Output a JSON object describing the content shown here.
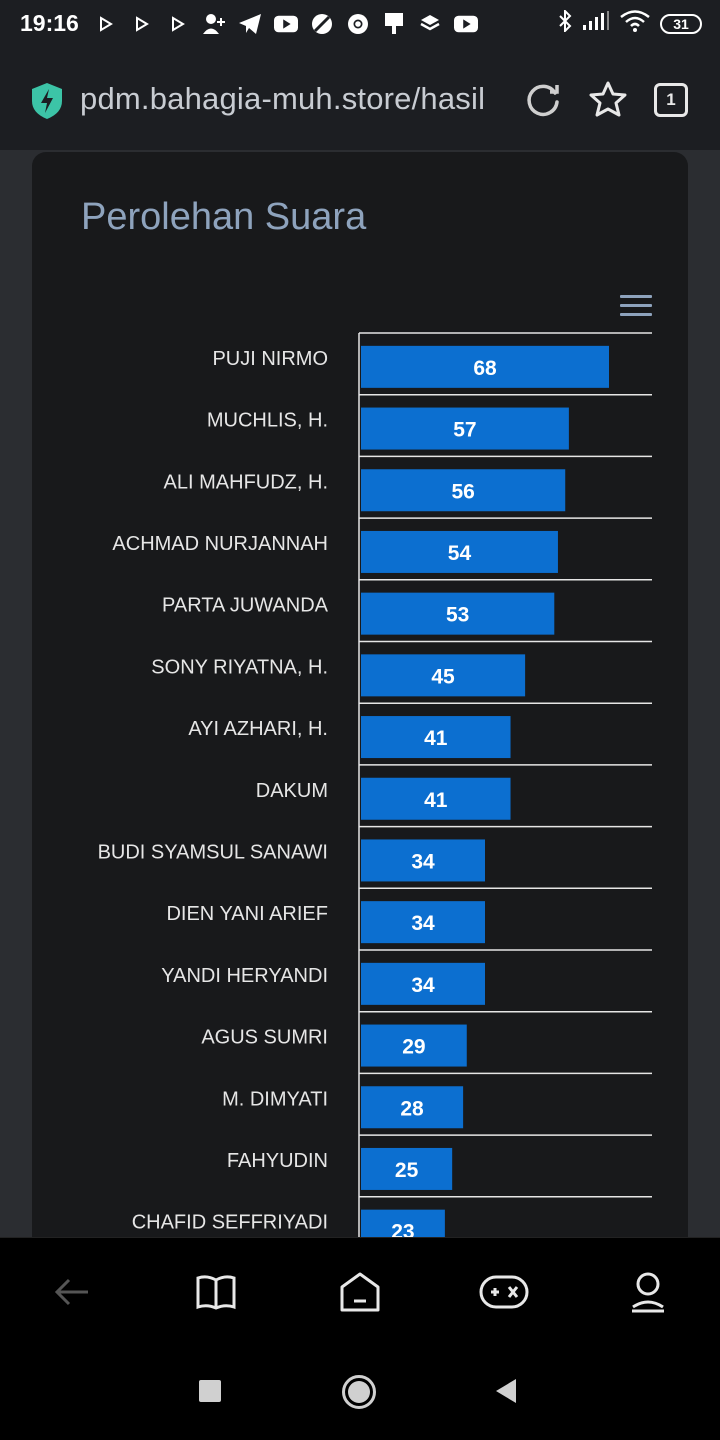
{
  "status_bar": {
    "time": "19:16",
    "battery": "31",
    "notification_icons": [
      "play-store-icon",
      "play-store-icon",
      "play-store-icon",
      "add-user-icon",
      "telegram-icon",
      "youtube-icon",
      "blocked-icon",
      "chrome-icon",
      "flag-icon",
      "stack-icon",
      "youtube-icon"
    ],
    "system_icons": [
      "bluetooth-icon",
      "signal-icon",
      "wifi-icon",
      "battery-icon"
    ]
  },
  "browser": {
    "url": "pdm.bahagia-muh.store/hasil",
    "tab_count": "1"
  },
  "card": {
    "title": "Perolehan Suara"
  },
  "chart_data": {
    "type": "bar",
    "orientation": "horizontal",
    "title": "Perolehan Suara",
    "categories": [
      "PUJI NIRMO",
      "MUCHLIS, H.",
      "ALI MAHFUDZ, H.",
      "ACHMAD NURJANNAH",
      "PARTA JUWANDA",
      "SONY RIYATNA, H.",
      "AYI AZHARI, H.",
      "DAKUM",
      "BUDI SYAMSUL SANAWI",
      "DIEN YANI ARIEF",
      "YANDI HERYANDI",
      "AGUS SUMRI",
      "M. DIMYATI",
      "FAHYUDIN",
      "CHAFID SEFFRIYADI"
    ],
    "values": [
      68,
      57,
      56,
      54,
      53,
      45,
      41,
      41,
      34,
      34,
      34,
      29,
      28,
      25,
      23
    ],
    "xlim": [
      0,
      80
    ],
    "bar_color": "#0c6fd0",
    "grid": true,
    "legend": "none"
  },
  "bottom_nav": [
    "back-arrow-icon",
    "book-icon",
    "home-icon",
    "game-icon",
    "profile-icon"
  ],
  "system_nav": [
    "recents-icon",
    "home-circle-icon",
    "back-triangle-icon"
  ]
}
